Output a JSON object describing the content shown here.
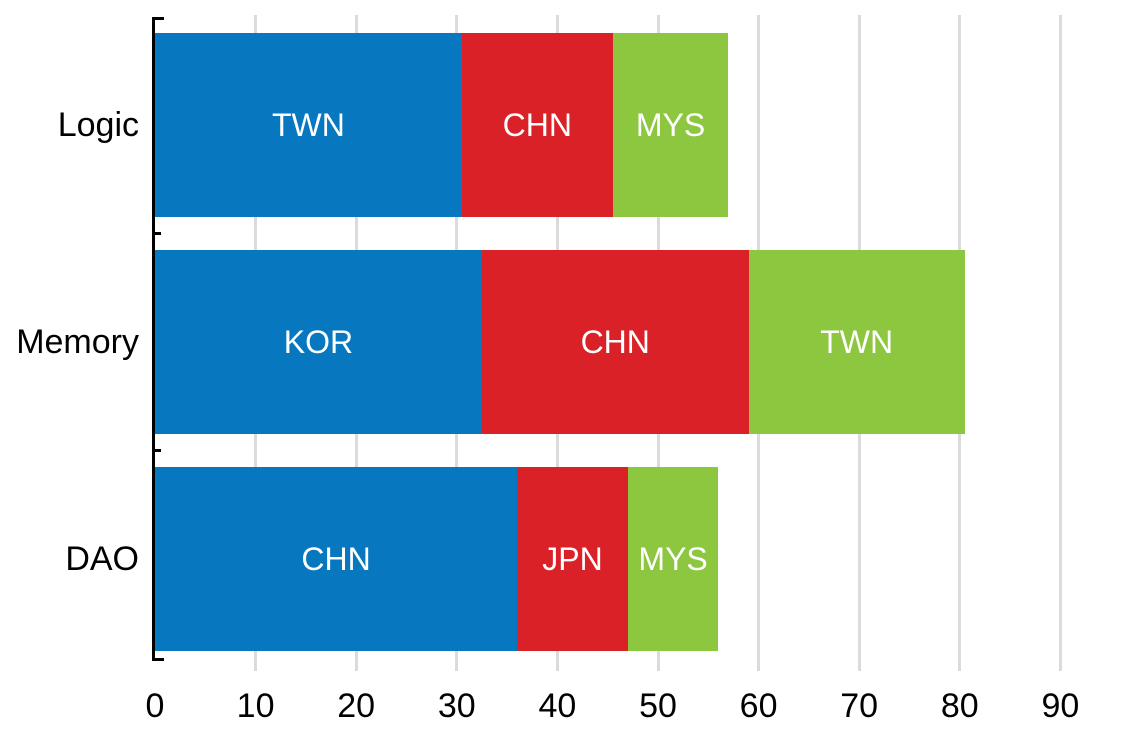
{
  "chart_data": {
    "type": "bar",
    "orientation": "horizontal",
    "stacked": true,
    "title": "",
    "xlabel": "",
    "ylabel": "",
    "xlim": [
      0,
      90
    ],
    "x_ticks": [
      0,
      10,
      20,
      30,
      40,
      50,
      60,
      70,
      80,
      90
    ],
    "grid": true,
    "legend": "none (labels inside segments)",
    "categories": [
      "Logic",
      "Memory",
      "DAO"
    ],
    "rows": [
      {
        "category": "Logic",
        "total": 57,
        "segments": [
          {
            "label": "TWN",
            "value": 30.5
          },
          {
            "label": "CHN",
            "value": 15
          },
          {
            "label": "MYS",
            "value": 11.5
          }
        ]
      },
      {
        "category": "Memory",
        "total": 80.5,
        "segments": [
          {
            "label": "KOR",
            "value": 32.5
          },
          {
            "label": "CHN",
            "value": 26.5
          },
          {
            "label": "TWN",
            "value": 21.5
          }
        ]
      },
      {
        "category": "DAO",
        "total": 56,
        "segments": [
          {
            "label": "CHN",
            "value": 36
          },
          {
            "label": "JPN",
            "value": 11
          },
          {
            "label": "MYS",
            "value": 9
          }
        ]
      }
    ],
    "colors": {
      "segment_palette": [
        "#0778BF",
        "#DA2128",
        "#8DC63F"
      ],
      "gridline": "#DBDBDB",
      "axis": "#000000",
      "segment_text": "#FFFFFF",
      "axis_text": "#000000",
      "background": "#FFFFFF"
    }
  }
}
